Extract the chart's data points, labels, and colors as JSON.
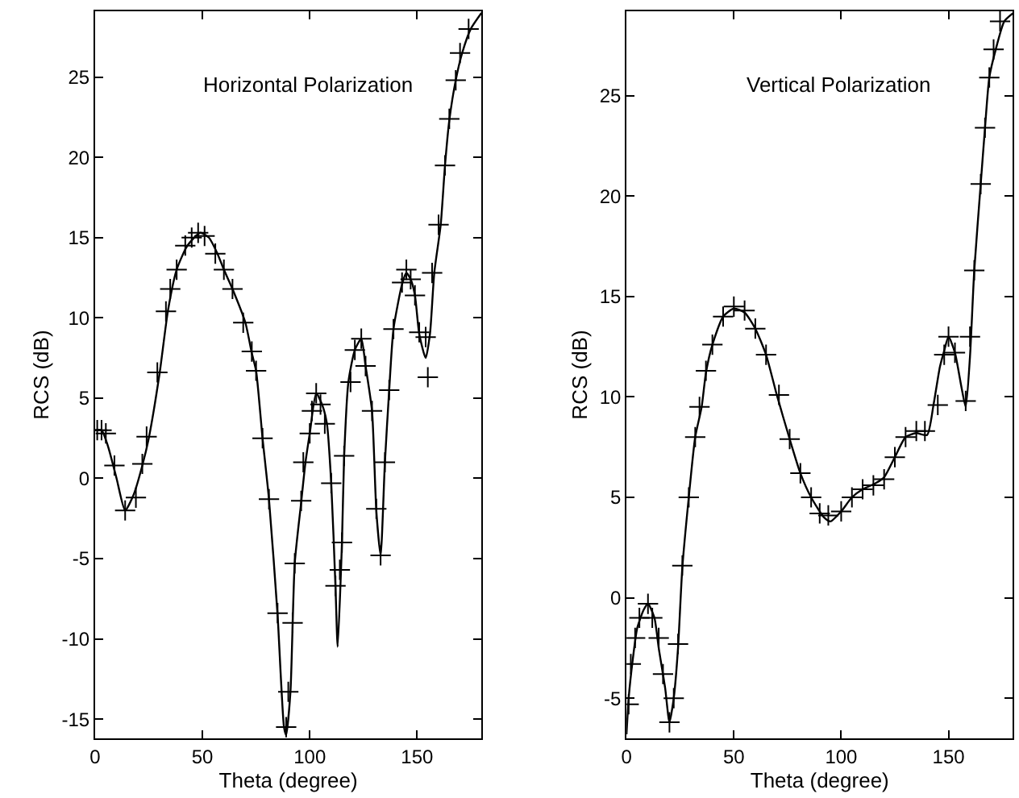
{
  "chart_data": [
    {
      "type": "line",
      "title": "Horizontal Polarization",
      "xlabel": "Theta (degree)",
      "ylabel": "RCS (dB)",
      "xlim": [
        0,
        180
      ],
      "xticks": [
        0,
        50,
        100,
        150
      ],
      "ylim": [
        -16.2,
        29.1
      ],
      "yticks": [
        -15,
        -10,
        -5,
        0,
        5,
        10,
        15,
        20,
        25
      ],
      "marker": "cross",
      "line_style": "solid",
      "series": [
        {
          "marker": "none",
          "color": "#000000",
          "x": [
            0,
            3,
            6,
            10,
            14,
            18,
            22,
            25,
            30,
            34,
            38,
            43,
            49,
            53,
            57,
            60,
            64,
            70,
            73,
            75,
            78,
            81,
            85,
            88,
            89,
            91,
            93,
            96,
            98,
            100,
            103,
            106,
            108,
            110,
            112,
            113,
            115,
            116,
            118,
            121,
            124,
            126,
            129,
            131,
            133,
            135,
            137,
            139,
            143,
            145,
            147,
            149,
            151,
            154,
            156,
            158,
            161,
            163,
            165,
            168,
            171,
            175,
            180
          ],
          "values": [
            3.0,
            3.0,
            2.0,
            0.0,
            -2.0,
            -1.0,
            0.8,
            2.5,
            6.5,
            10.5,
            13.0,
            14.5,
            15.3,
            15.0,
            14.0,
            13.0,
            11.8,
            9.7,
            7.8,
            6.7,
            2.5,
            -1.3,
            -8.5,
            -15.5,
            -16.0,
            -13.3,
            -5.3,
            -1.5,
            1.0,
            2.8,
            5.3,
            4.5,
            3.4,
            -0.3,
            -6.8,
            -10.5,
            -4.0,
            1.3,
            6.0,
            8.0,
            8.7,
            7.0,
            4.2,
            -2.0,
            -4.8,
            1.0,
            5.5,
            9.3,
            12.1,
            12.8,
            12.4,
            11.4,
            9.0,
            7.5,
            9.0,
            12.8,
            15.8,
            19.5,
            22.3,
            24.8,
            26.5,
            28.0,
            29.0
          ]
        },
        {
          "type": "scatter",
          "color": "#000000",
          "x": [
            1,
            3,
            5,
            9,
            14,
            19,
            22,
            24,
            29,
            33,
            35,
            38,
            42,
            45,
            48,
            51,
            56,
            60,
            64,
            69,
            73,
            75,
            78,
            81,
            85,
            89,
            90,
            92,
            93,
            96,
            97,
            100,
            101,
            103,
            105,
            107,
            110,
            112,
            114,
            115,
            116,
            119,
            121,
            124,
            126,
            129,
            131,
            133,
            135,
            137,
            139,
            143,
            145,
            147,
            149,
            151,
            154,
            155,
            157,
            160,
            163,
            165,
            168,
            170,
            174
          ],
          "values": [
            3.0,
            3.0,
            2.8,
            0.8,
            -2.0,
            -1.2,
            0.9,
            2.6,
            6.6,
            10.4,
            11.8,
            13.0,
            14.5,
            15.0,
            15.3,
            15.1,
            14.0,
            13.0,
            11.8,
            9.7,
            7.9,
            6.7,
            2.5,
            -1.3,
            -8.4,
            -15.5,
            -13.3,
            -9.0,
            -5.3,
            -1.4,
            1.0,
            2.8,
            4.2,
            5.3,
            4.6,
            3.4,
            -0.3,
            -6.7,
            -5.7,
            -4.0,
            1.4,
            6.0,
            8.0,
            8.7,
            7.0,
            4.2,
            -1.9,
            -4.8,
            1.0,
            5.5,
            9.3,
            12.2,
            13.0,
            12.4,
            11.4,
            9.1,
            8.8,
            6.3,
            12.8,
            15.8,
            19.5,
            22.4,
            24.8,
            26.5,
            28.0
          ]
        }
      ]
    },
    {
      "type": "line",
      "title": "Vertical Polarization",
      "xlabel": "Theta (degree)",
      "ylabel": "RCS (dB)",
      "xlim": [
        0,
        180
      ],
      "xticks": [
        0,
        50,
        100,
        150
      ],
      "ylim": [
        -7.0,
        29.2
      ],
      "yticks": [
        -5,
        0,
        5,
        10,
        15,
        20,
        25
      ],
      "marker": "cross",
      "line_style": "solid",
      "series": [
        {
          "marker": "none",
          "color": "#000000",
          "x": [
            0,
            1,
            3,
            5,
            8,
            10,
            13,
            15,
            18,
            20,
            22,
            24,
            26,
            29,
            32,
            35,
            37,
            40,
            45,
            50,
            55,
            60,
            65,
            70,
            76,
            81,
            86,
            92,
            95,
            100,
            105,
            110,
            116,
            120,
            125,
            130,
            135,
            140,
            143,
            146,
            148,
            150,
            153,
            156,
            158,
            160,
            162,
            165,
            167,
            169,
            172,
            176,
            180
          ],
          "values": [
            -6.8,
            -5.0,
            -3.0,
            -1.5,
            -0.6,
            -0.3,
            -1.0,
            -2.5,
            -4.5,
            -6.2,
            -5.0,
            -2.5,
            1.5,
            5.0,
            8.0,
            9.5,
            11.2,
            12.6,
            14.0,
            14.4,
            14.2,
            13.4,
            12.1,
            10.1,
            7.9,
            6.2,
            5.0,
            4.0,
            3.8,
            4.3,
            5.0,
            5.4,
            5.7,
            6.0,
            7.0,
            8.0,
            8.2,
            8.1,
            9.6,
            11.5,
            12.3,
            13.0,
            12.2,
            10.5,
            9.5,
            12.0,
            16.3,
            20.6,
            23.4,
            25.9,
            27.3,
            28.7,
            29.1
          ]
        },
        {
          "type": "scatter",
          "color": "#000000",
          "x": [
            1,
            2,
            4,
            6,
            10,
            12,
            15,
            17,
            20,
            22,
            24,
            26,
            29,
            32,
            34,
            37,
            40,
            45,
            50,
            55,
            60,
            65,
            71,
            76,
            81,
            86,
            90,
            94,
            100,
            105,
            110,
            115,
            120,
            125,
            130,
            135,
            139,
            145,
            148,
            150,
            153,
            158,
            160,
            162,
            165,
            167,
            169,
            171,
            174
          ],
          "values": [
            -5.3,
            -3.3,
            -2.0,
            -1.0,
            -0.3,
            -1.0,
            -2.0,
            -3.8,
            -6.2,
            -5.0,
            -2.3,
            1.6,
            5.0,
            8.0,
            9.5,
            11.3,
            12.6,
            14.0,
            14.5,
            14.3,
            13.4,
            12.1,
            10.1,
            7.9,
            6.2,
            5.0,
            4.2,
            4.1,
            4.3,
            5.0,
            5.4,
            5.6,
            5.9,
            7.0,
            8.0,
            8.3,
            8.3,
            9.6,
            12.1,
            13.0,
            12.2,
            9.8,
            13.0,
            16.3,
            20.6,
            23.4,
            25.9,
            27.3,
            28.7
          ]
        }
      ]
    }
  ]
}
